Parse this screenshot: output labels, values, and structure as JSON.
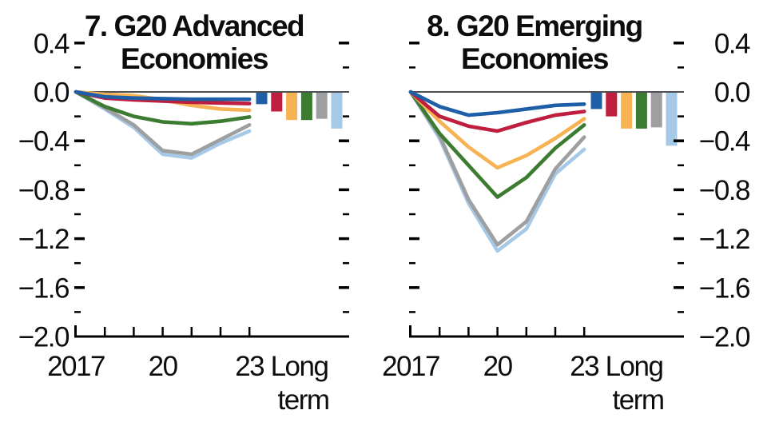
{
  "figure": {
    "background": "#ffffff",
    "axis_color": "#000000",
    "zero_line_color": "#4d4f53"
  },
  "y_axis": {
    "tick_labels": [
      "0.4",
      "0.0",
      "−0.4",
      "−0.8",
      "−1.2",
      "−1.6",
      "−2.0"
    ],
    "tick_values": [
      0.4,
      0.0,
      -0.4,
      -0.8,
      -1.2,
      -1.6,
      -2.0
    ],
    "minor_tick_values": [
      0.2,
      -0.2,
      -0.6,
      -1.0,
      -1.4,
      -1.8
    ],
    "range": [
      -2.0,
      0.4
    ]
  },
  "chart_data": [
    {
      "type": "line+bar",
      "title": "7. G20 Advanced Economies",
      "title_line1": "7. G20 Advanced",
      "title_line2": "Economies",
      "x": [
        2017,
        2018,
        2019,
        2020,
        2021,
        2022,
        2023
      ],
      "x_tick_labels": [
        {
          "x": 2017,
          "label": "2017"
        },
        {
          "x": 2020,
          "label": "20"
        },
        {
          "x": 2023,
          "label": "23"
        }
      ],
      "long_term": {
        "label_line1": "Long",
        "label_line2": "term"
      },
      "ylim": [
        -2.0,
        0.4
      ],
      "series": [
        {
          "name": "dark-blue",
          "color": "#1f5fa8",
          "values": [
            0,
            -0.04,
            -0.05,
            -0.055,
            -0.06,
            -0.06,
            -0.06
          ],
          "long_term": -0.1
        },
        {
          "name": "red",
          "color": "#bf1e3e",
          "values": [
            0,
            -0.05,
            -0.065,
            -0.075,
            -0.085,
            -0.09,
            -0.095
          ],
          "long_term": -0.16
        },
        {
          "name": "yellow",
          "color": "#f7b254",
          "values": [
            0,
            -0.02,
            -0.03,
            -0.065,
            -0.11,
            -0.14,
            -0.15
          ],
          "long_term": -0.23
        },
        {
          "name": "green",
          "color": "#3b7c31",
          "values": [
            0,
            -0.12,
            -0.2,
            -0.245,
            -0.26,
            -0.24,
            -0.205
          ],
          "long_term": -0.23
        },
        {
          "name": "gray",
          "color": "#9d9fa1",
          "values": [
            0,
            -0.13,
            -0.27,
            -0.48,
            -0.51,
            -0.39,
            -0.27
          ],
          "long_term": -0.22
        },
        {
          "name": "light-blue",
          "color": "#a7c9e8",
          "values": [
            0,
            -0.14,
            -0.29,
            -0.51,
            -0.54,
            -0.42,
            -0.32
          ],
          "long_term": -0.3
        }
      ]
    },
    {
      "type": "line+bar",
      "title": "8. G20 Emerging Economies",
      "title_line1": "8. G20 Emerging",
      "title_line2": "Economies",
      "x": [
        2017,
        2018,
        2019,
        2020,
        2021,
        2022,
        2023
      ],
      "x_tick_labels": [
        {
          "x": 2017,
          "label": "2017"
        },
        {
          "x": 2020,
          "label": "20"
        },
        {
          "x": 2023,
          "label": "23"
        }
      ],
      "long_term": {
        "label_line1": "Long",
        "label_line2": "term"
      },
      "ylim": [
        -2.0,
        0.4
      ],
      "series": [
        {
          "name": "dark-blue",
          "color": "#1f5fa8",
          "values": [
            0,
            -0.12,
            -0.19,
            -0.17,
            -0.14,
            -0.11,
            -0.1
          ],
          "long_term": -0.14
        },
        {
          "name": "red",
          "color": "#bf1e3e",
          "values": [
            0,
            -0.2,
            -0.28,
            -0.32,
            -0.25,
            -0.19,
            -0.16
          ],
          "long_term": -0.2
        },
        {
          "name": "yellow",
          "color": "#f7b254",
          "values": [
            0,
            -0.24,
            -0.45,
            -0.62,
            -0.52,
            -0.38,
            -0.22
          ],
          "long_term": -0.3
        },
        {
          "name": "green",
          "color": "#3b7c31",
          "values": [
            0,
            -0.34,
            -0.6,
            -0.86,
            -0.7,
            -0.46,
            -0.27
          ],
          "long_term": -0.3
        },
        {
          "name": "gray",
          "color": "#9d9fa1",
          "values": [
            0,
            -0.36,
            -0.88,
            -1.25,
            -1.06,
            -0.63,
            -0.37
          ],
          "long_term": -0.29
        },
        {
          "name": "light-blue",
          "color": "#a7c9e8",
          "values": [
            0,
            -0.38,
            -0.91,
            -1.3,
            -1.12,
            -0.67,
            -0.47
          ],
          "long_term": -0.44
        }
      ]
    }
  ]
}
